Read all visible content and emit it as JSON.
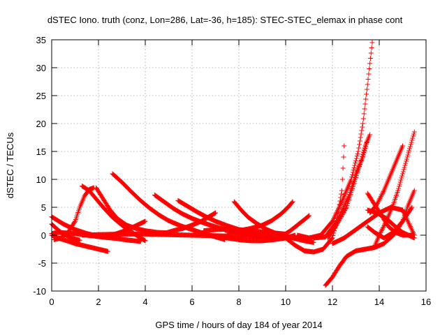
{
  "chart_data": {
    "type": "scatter",
    "title": "dSTEC Iono. truth (conz, Lon=286, Lat=-36, h=185): STEC-STEC_elemax in phase cont",
    "xlabel": "GPS time / hours of day 184 of year 2014",
    "ylabel": "dSTEC  / TECUs",
    "xlim": [
      0,
      16
    ],
    "ylim": [
      -10,
      35
    ],
    "xticks": [
      0,
      2,
      4,
      6,
      8,
      10,
      12,
      14,
      16
    ],
    "yticks": [
      -10,
      -5,
      0,
      5,
      10,
      15,
      20,
      25,
      30,
      35
    ],
    "grid": true,
    "legend": "none",
    "marker": "plus",
    "color": "#ff0000",
    "series": [
      {
        "x": [
          0.0,
          0.2,
          0.5,
          0.8,
          1.0,
          1.3,
          1.6,
          2.0,
          2.4
        ],
        "y": [
          0.0,
          -0.4,
          -0.8,
          -1.2,
          -1.5,
          -1.8,
          -2.1,
          -2.5,
          -2.9
        ]
      },
      {
        "x": [
          0.0,
          0.3,
          0.6,
          0.9,
          1.2,
          1.5,
          1.9,
          2.3,
          2.8,
          3.3,
          3.8
        ],
        "y": [
          0.3,
          0.5,
          0.4,
          0.3,
          0.2,
          0.0,
          -0.2,
          -0.4,
          -0.6,
          -0.9,
          -1.1
        ]
      },
      {
        "x": [
          0.0,
          0.2,
          0.4,
          0.6,
          0.8,
          1.0,
          1.2
        ],
        "y": [
          2.0,
          1.2,
          0.5,
          0.0,
          -0.4,
          -0.7,
          -0.9
        ]
      },
      {
        "x": [
          0.1,
          0.4,
          0.7,
          1.0,
          1.2,
          1.4,
          1.6,
          1.8
        ],
        "y": [
          -0.8,
          -0.5,
          0.5,
          2.5,
          5.0,
          7.0,
          8.2,
          8.5
        ]
      },
      {
        "x": [
          1.3,
          1.6,
          1.9,
          2.2,
          2.6,
          3.0,
          3.4,
          3.8,
          4.0
        ],
        "y": [
          8.8,
          8.0,
          6.5,
          5.0,
          3.2,
          1.8,
          0.6,
          -0.5,
          -1.0
        ]
      },
      {
        "x": [
          1.9,
          2.2,
          2.5,
          2.8,
          3.2,
          3.6,
          4.0,
          4.5,
          5.0
        ],
        "y": [
          8.5,
          6.5,
          4.5,
          3.0,
          1.8,
          1.2,
          0.8,
          0.5,
          0.4
        ]
      },
      {
        "x": [
          2.6,
          3.0,
          3.4,
          3.8,
          4.2,
          4.6,
          5.0,
          5.5,
          6.0,
          6.5,
          7.0,
          7.4
        ],
        "y": [
          11.0,
          9.5,
          7.8,
          6.2,
          4.8,
          3.6,
          2.6,
          1.7,
          1.0,
          0.3,
          -0.3,
          -0.8
        ]
      },
      {
        "x": [
          0.0,
          0.5,
          1.0,
          1.5,
          2.0,
          2.5,
          3.0,
          3.5,
          4.0
        ],
        "y": [
          3.3,
          2.0,
          1.0,
          0.3,
          -0.2,
          -0.1,
          0.6,
          1.5,
          2.5
        ]
      },
      {
        "x": [
          4.4,
          4.8,
          5.2,
          5.6,
          6.0,
          6.5,
          7.0,
          7.5,
          8.0,
          8.5,
          9.0
        ],
        "y": [
          7.2,
          6.0,
          4.8,
          3.8,
          3.0,
          2.2,
          1.5,
          0.9,
          0.4,
          0.0,
          -0.3
        ]
      },
      {
        "x": [
          5.4,
          5.8,
          6.2,
          6.6,
          7.0,
          7.5,
          8.0,
          8.5,
          9.0,
          9.4
        ],
        "y": [
          6.2,
          5.2,
          4.2,
          3.3,
          2.5,
          1.7,
          1.0,
          0.5,
          0.0,
          -0.3
        ]
      },
      {
        "x": [
          4.8,
          5.2,
          5.6,
          6.0,
          6.4,
          6.8,
          7.0
        ],
        "y": [
          0.3,
          0.8,
          1.2,
          1.8,
          2.5,
          3.5,
          4.0
        ]
      },
      {
        "x": [
          1.3,
          2.0,
          3.0,
          4.0,
          5.0,
          6.0,
          7.0,
          8.0,
          9.0,
          10.0,
          10.5
        ],
        "y": [
          0.0,
          0.1,
          0.2,
          0.2,
          0.1,
          0.0,
          -0.1,
          -0.2,
          -0.3,
          -0.4,
          -0.5
        ]
      },
      {
        "x": [
          7.8,
          8.1,
          8.4,
          8.8,
          9.2,
          9.6,
          10.0,
          10.4,
          10.8,
          11.2
        ],
        "y": [
          6.0,
          4.5,
          3.2,
          2.0,
          1.0,
          0.3,
          -0.2,
          -0.6,
          -1.0,
          -1.3
        ]
      },
      {
        "x": [
          6.5,
          7.0,
          7.5,
          8.0,
          8.5,
          9.0,
          9.5,
          10.0
        ],
        "y": [
          0.8,
          1.0,
          1.1,
          1.0,
          0.8,
          0.6,
          0.4,
          0.2
        ]
      },
      {
        "x": [
          7.5,
          8.0,
          8.5,
          9.0,
          9.4,
          9.8,
          10.1,
          10.3
        ],
        "y": [
          0.5,
          0.8,
          1.2,
          1.8,
          2.6,
          3.8,
          5.0,
          6.0
        ]
      },
      {
        "x": [
          7.0,
          7.5,
          8.0,
          8.5,
          9.0,
          9.5,
          10.0,
          10.4
        ],
        "y": [
          -0.3,
          -0.5,
          -0.8,
          -1.0,
          -1.0,
          -0.8,
          -0.5,
          0.0
        ]
      },
      {
        "x": [
          9.9,
          10.2,
          10.5,
          10.8,
          11.0
        ],
        "y": [
          0.0,
          0.8,
          1.8,
          2.8,
          3.5
        ]
      },
      {
        "x": [
          10.0,
          10.4,
          10.8,
          11.2,
          11.6,
          12.0,
          12.2,
          12.4,
          12.5
        ],
        "y": [
          -0.5,
          -1.8,
          -2.8,
          -3.0,
          -2.5,
          -0.5,
          3.0,
          8.0,
          16.0
        ]
      },
      {
        "x": [
          10.5,
          11.0,
          11.5,
          12.0,
          12.4,
          12.8,
          13.1,
          13.3,
          13.5,
          13.7
        ],
        "y": [
          0.0,
          -0.5,
          0.0,
          2.5,
          6.0,
          10.0,
          15.0,
          20.0,
          27.0,
          34.5
        ]
      },
      {
        "x": [
          11.2,
          11.7,
          12.2,
          12.7,
          13.0,
          13.3,
          13.5
        ],
        "y": [
          -0.5,
          -0.3,
          2.5,
          7.0,
          11.0,
          14.0,
          17.0
        ]
      },
      {
        "x": [
          11.8,
          12.2,
          12.6,
          12.9,
          13.2,
          13.4,
          13.6
        ],
        "y": [
          -0.5,
          2.0,
          5.0,
          9.0,
          13.0,
          16.0,
          18.0
        ]
      },
      {
        "x": [
          13.5,
          13.8,
          14.1,
          14.4,
          14.7,
          15.0,
          15.3,
          15.5
        ],
        "y": [
          7.5,
          5.5,
          3.5,
          1.5,
          0.5,
          0.0,
          0.0,
          0.0
        ]
      },
      {
        "x": [
          13.5,
          13.8,
          14.2,
          14.6,
          15.0,
          15.2,
          15.4,
          15.5
        ],
        "y": [
          1.5,
          0.5,
          -0.5,
          0.5,
          2.5,
          5.0,
          7.0,
          8.0
        ]
      },
      {
        "x": [
          13.8,
          14.0,
          14.3,
          14.6,
          14.8,
          15.0,
          15.2,
          15.4,
          15.5
        ],
        "y": [
          -2.0,
          0.0,
          2.5,
          5.5,
          8.0,
          11.0,
          14.0,
          17.0,
          18.5
        ]
      },
      {
        "x": [
          13.6,
          13.9,
          14.2,
          14.5,
          14.8,
          15.0
        ],
        "y": [
          4.0,
          5.5,
          8.0,
          11.0,
          14.0,
          16.0
        ]
      },
      {
        "x": [
          11.7,
          12.0,
          12.3,
          12.6,
          13.0,
          13.4,
          13.8,
          14.2,
          14.6,
          15.0,
          15.4
        ],
        "y": [
          -9.0,
          -7.5,
          -5.5,
          -3.8,
          -2.8,
          -2.5,
          -2.2,
          -1.5,
          0.0,
          2.5,
          5.0
        ]
      },
      {
        "x": [
          12.0,
          12.5,
          13.0,
          13.5,
          14.0,
          14.5,
          15.0,
          15.5
        ],
        "y": [
          -1.5,
          -0.5,
          1.0,
          2.5,
          4.0,
          5.0,
          4.5,
          0.0
        ]
      },
      {
        "x": [
          13.5,
          13.9,
          14.3,
          14.7,
          15.0,
          15.5
        ],
        "y": [
          4.5,
          4.0,
          3.0,
          1.5,
          0.5,
          -0.5
        ]
      }
    ]
  }
}
